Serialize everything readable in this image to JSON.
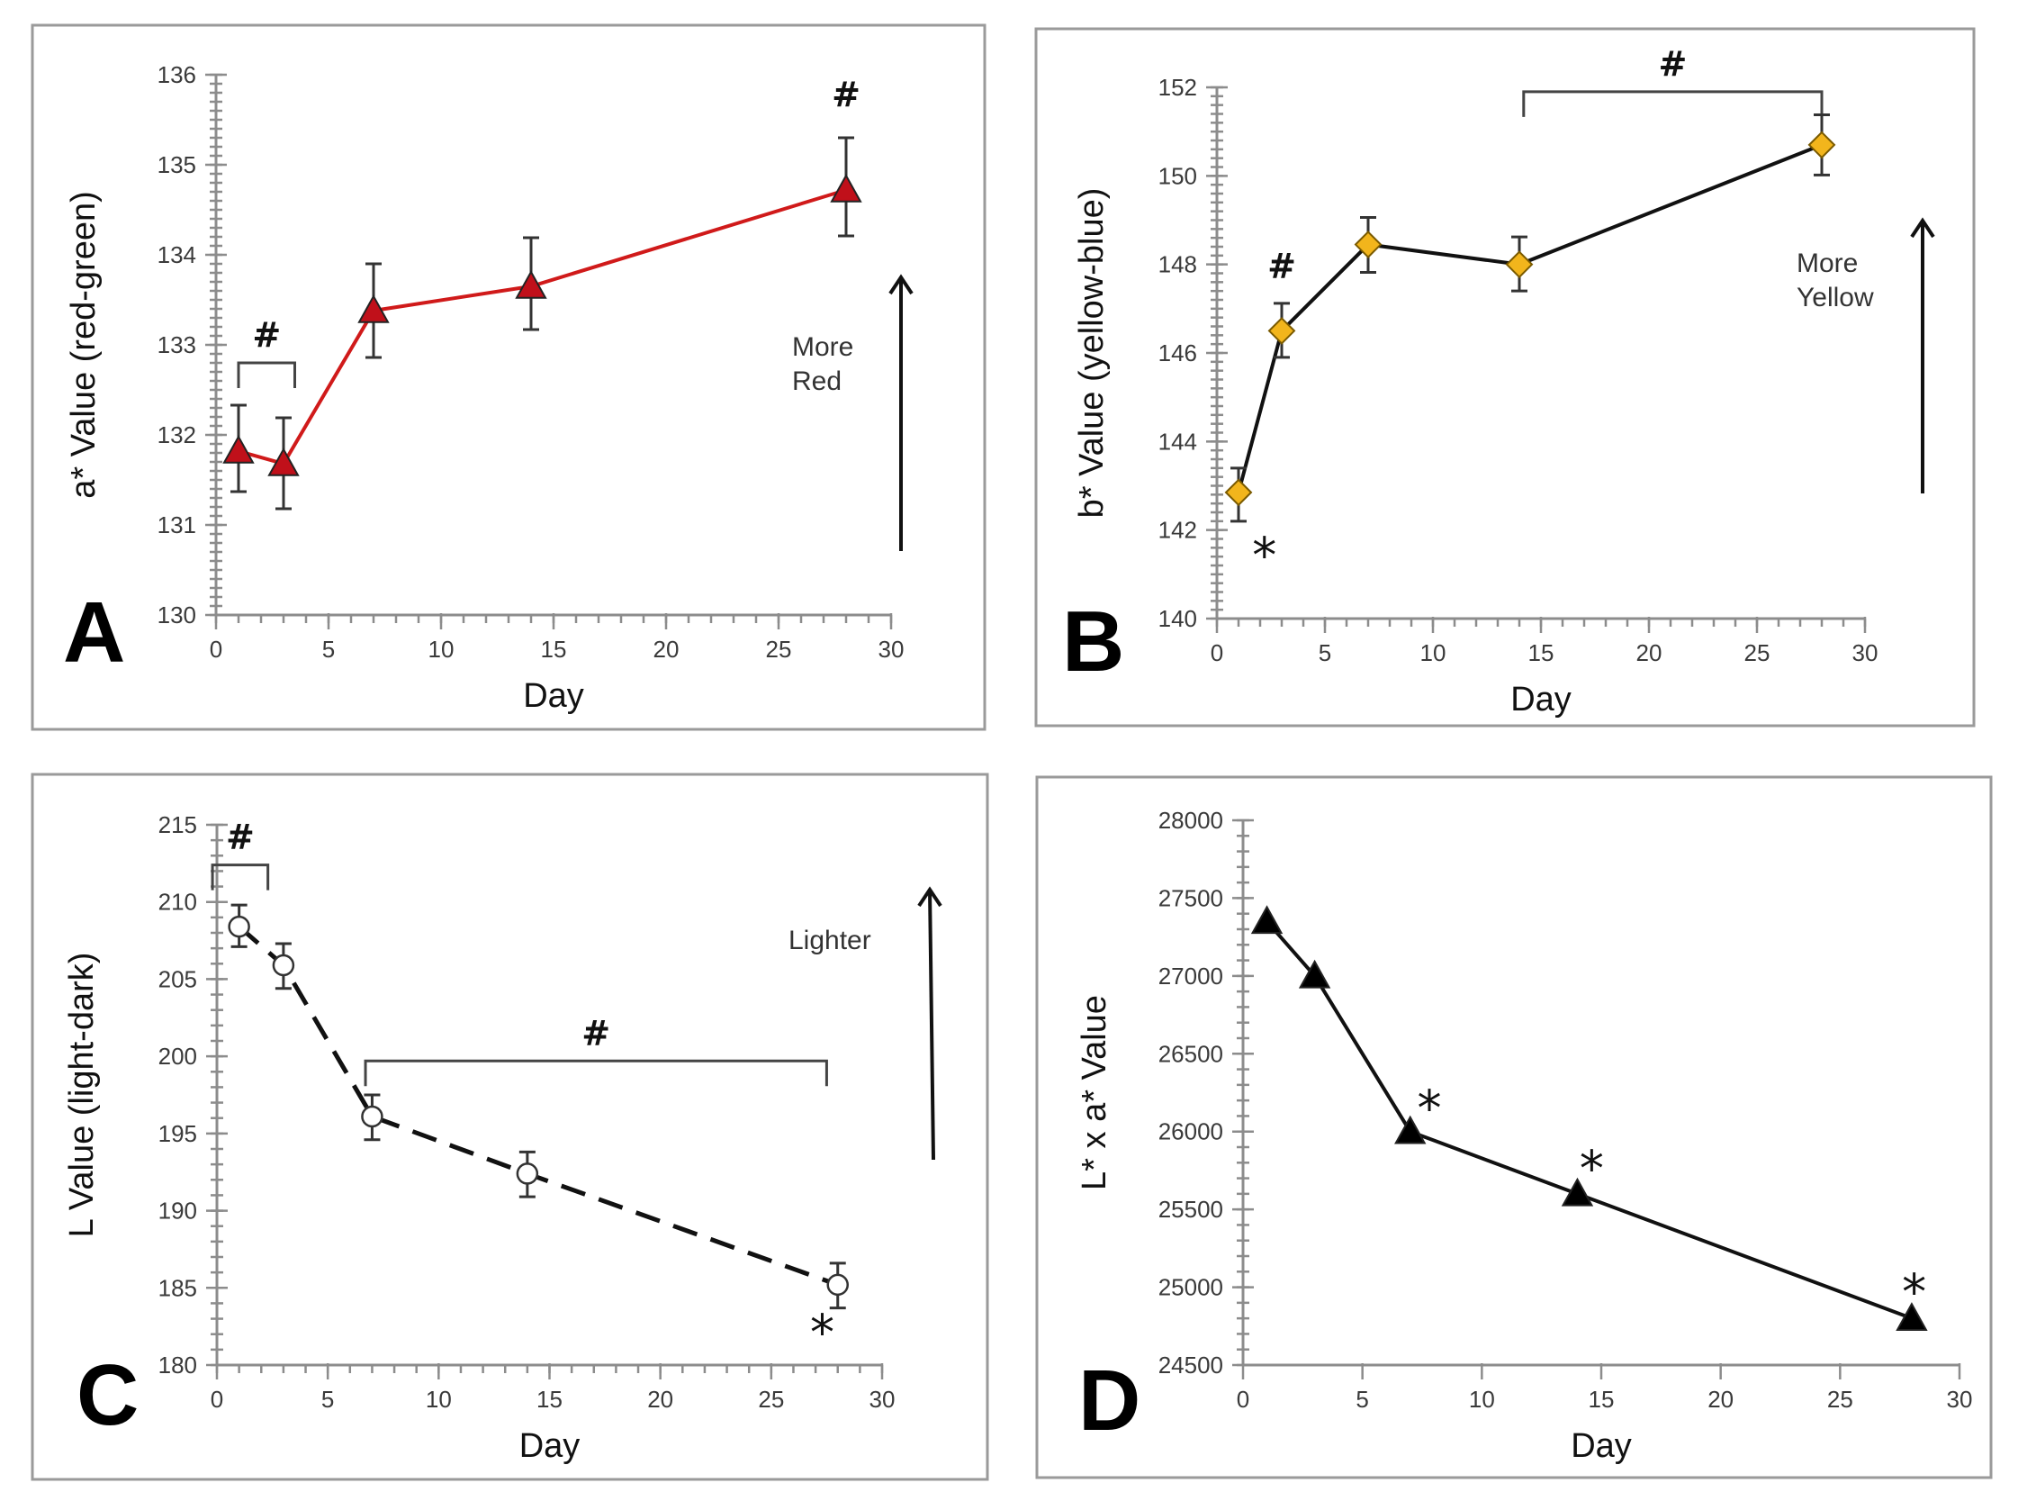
{
  "figure": {
    "panels": [
      "A",
      "B",
      "C",
      "D"
    ]
  },
  "chart_data": [
    {
      "panel": "A",
      "type": "line",
      "title": "",
      "xlabel": "Day",
      "ylabel": "a* Value  (red-green)",
      "xlim": [
        0,
        30
      ],
      "ylim": [
        130,
        136
      ],
      "x_ticks": [
        0,
        5,
        10,
        15,
        20,
        25,
        30
      ],
      "y_ticks": [
        130,
        131,
        132,
        133,
        134,
        135,
        136
      ],
      "grid": false,
      "marker": "triangle",
      "line_style": "solid",
      "line_color": "#d01a1a",
      "marker_fill": "#c0101a",
      "series": [
        {
          "name": "a* value",
          "x": [
            1,
            3,
            7,
            14,
            28
          ],
          "values": [
            131.82,
            131.68,
            133.38,
            133.65,
            134.72
          ],
          "error_low": [
            131.37,
            131.18,
            132.86,
            133.17,
            134.21
          ],
          "error_high": [
            132.33,
            132.19,
            133.9,
            134.19,
            135.3
          ]
        }
      ],
      "annotations": {
        "direction_label": [
          "More",
          "Red"
        ],
        "brackets": [
          {
            "from_day": 1,
            "to_day": 3.5,
            "level": 132.8,
            "label": "#"
          }
        ],
        "point_marks": [
          {
            "day": 28,
            "value": 135.65,
            "label": "#"
          }
        ]
      }
    },
    {
      "panel": "B",
      "type": "line",
      "title": "",
      "xlabel": "Day",
      "ylabel": "b* Value  (yellow-blue)",
      "xlim": [
        0,
        30
      ],
      "ylim": [
        140,
        152
      ],
      "x_ticks": [
        0,
        5,
        10,
        15,
        20,
        25,
        30
      ],
      "y_ticks": [
        140,
        142,
        144,
        146,
        148,
        150,
        152
      ],
      "grid": false,
      "marker": "diamond",
      "line_style": "solid",
      "line_color": "#111111",
      "marker_fill": "#f2b51c",
      "series": [
        {
          "name": "b* value",
          "x": [
            1,
            3,
            7,
            14,
            28
          ],
          "values": [
            142.85,
            146.5,
            148.45,
            148.0,
            150.7
          ],
          "error_low": [
            142.2,
            145.9,
            147.82,
            147.4,
            150.02
          ],
          "error_high": [
            143.4,
            147.12,
            149.06,
            148.62,
            151.38
          ]
        }
      ],
      "annotations": {
        "direction_label": [
          "More",
          "Yellow"
        ],
        "brackets": [
          {
            "from_day": 14.2,
            "to_day": 28,
            "level": 151.9,
            "label": "#"
          }
        ],
        "point_marks": [
          {
            "day": 3,
            "value": 147.7,
            "label": "#"
          },
          {
            "day": 2.2,
            "value": 141.5,
            "label": "*"
          }
        ]
      }
    },
    {
      "panel": "C",
      "type": "line",
      "title": "",
      "xlabel": "Day",
      "ylabel": "L Value  (light-dark)",
      "xlim": [
        0,
        30
      ],
      "ylim": [
        180,
        215
      ],
      "x_ticks": [
        0,
        5,
        10,
        15,
        20,
        25,
        30
      ],
      "y_ticks": [
        180,
        185,
        190,
        195,
        200,
        205,
        210,
        215
      ],
      "grid": false,
      "marker": "open-circle",
      "line_style": "dashed",
      "line_color": "#111111",
      "marker_fill": "#ffffff",
      "series": [
        {
          "name": "L value",
          "x": [
            1,
            3,
            7,
            14,
            28
          ],
          "values": [
            208.4,
            205.9,
            196.1,
            192.4,
            185.2
          ],
          "error_low": [
            207.1,
            204.4,
            194.6,
            190.9,
            183.7
          ],
          "error_high": [
            209.8,
            207.3,
            197.5,
            193.8,
            186.6
          ]
        }
      ],
      "annotations": {
        "direction_label": [
          "Lighter"
        ],
        "brackets": [
          {
            "from_day": -0.2,
            "to_day": 2.3,
            "level": 212.4,
            "label": "#"
          },
          {
            "from_day": 6.7,
            "to_day": 27.5,
            "level": 199.7,
            "label": "#"
          }
        ],
        "point_marks": [
          {
            "day": 27.3,
            "value": 182.3,
            "label": "*"
          }
        ]
      }
    },
    {
      "panel": "D",
      "type": "line",
      "title": "",
      "xlabel": "Day",
      "ylabel": "L* x a* Value",
      "xlim": [
        0,
        30
      ],
      "ylim": [
        24500,
        28000
      ],
      "x_ticks": [
        0,
        5,
        10,
        15,
        20,
        25,
        30
      ],
      "y_ticks": [
        24500,
        25000,
        25500,
        26000,
        26500,
        27000,
        27500,
        28000
      ],
      "grid": false,
      "marker": "triangle",
      "line_style": "solid",
      "line_color": "#111111",
      "marker_fill": "#000000",
      "series": [
        {
          "name": "L* x a* value",
          "x": [
            1,
            3,
            7,
            14,
            28
          ],
          "values": [
            27350,
            27000,
            26000,
            25600,
            24800
          ]
        }
      ],
      "annotations": {
        "direction_label": [],
        "brackets": [],
        "point_marks": [
          {
            "day": 7.8,
            "value": 26170,
            "label": "*"
          },
          {
            "day": 14.6,
            "value": 25780,
            "label": "*"
          },
          {
            "day": 28.1,
            "value": 24990,
            "label": "*"
          }
        ]
      }
    }
  ]
}
